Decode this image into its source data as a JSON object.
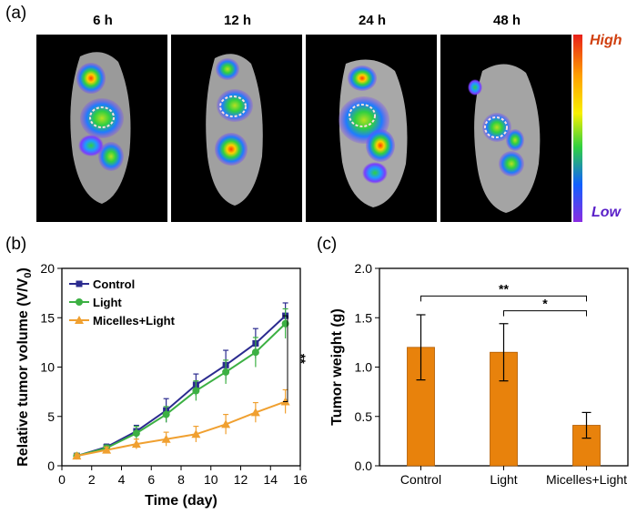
{
  "panels": {
    "a": "(a)",
    "b": "(b)",
    "c": "(c)"
  },
  "imaging": {
    "timepoints": [
      "6 h",
      "12 h",
      "24 h",
      "48 h"
    ],
    "scale_high": "High",
    "scale_low": "Low"
  },
  "chart_data": [
    {
      "type": "line",
      "panel": "b",
      "xlabel": "Time (day)",
      "ylabel": "Relative tumor volume (V/V",
      "ylabel_sub": "0",
      "ylabel_end": ")",
      "xlim": [
        0,
        16
      ],
      "ylim": [
        0,
        20
      ],
      "xticks": [
        0,
        2,
        4,
        6,
        8,
        10,
        12,
        14,
        16
      ],
      "yticks": [
        0,
        5,
        10,
        15,
        20
      ],
      "x": [
        1,
        3,
        5,
        7,
        9,
        11,
        13,
        15
      ],
      "series": [
        {
          "name": "Control",
          "color": "#2b2b8f",
          "marker": "square",
          "values": [
            1.0,
            1.9,
            3.5,
            5.6,
            8.2,
            10.2,
            12.4,
            15.2
          ],
          "errors": [
            0.2,
            0.3,
            0.6,
            1.2,
            1.1,
            1.5,
            1.5,
            1.3
          ]
        },
        {
          "name": "Light",
          "color": "#3cb043",
          "marker": "circle",
          "values": [
            1.0,
            1.8,
            3.3,
            5.2,
            7.6,
            9.5,
            11.5,
            14.4
          ],
          "errors": [
            0.2,
            0.3,
            0.7,
            0.8,
            1.0,
            1.2,
            1.5,
            1.5
          ]
        },
        {
          "name": "Micelles+Light",
          "color": "#f0a030",
          "marker": "triangle",
          "values": [
            1.0,
            1.6,
            2.2,
            2.7,
            3.2,
            4.2,
            5.4,
            6.5
          ],
          "errors": [
            0.2,
            0.3,
            0.5,
            0.7,
            0.8,
            1.0,
            1.0,
            1.2
          ]
        }
      ],
      "annotations": [
        "**"
      ],
      "legend": "top-left"
    },
    {
      "type": "bar",
      "panel": "c",
      "categories": [
        "Control",
        "Light",
        "Micelles+Light"
      ],
      "values": [
        1.2,
        1.15,
        0.41
      ],
      "errors": [
        0.33,
        0.29,
        0.13
      ],
      "ylabel": "Tumor weight (g)",
      "ylim": [
        0,
        2.0
      ],
      "yticks": [
        "0.0",
        "0.5",
        "1.0",
        "1.5",
        "2.0"
      ],
      "bar_color": "#e8820c",
      "annotations": [
        "**",
        "*"
      ]
    }
  ]
}
